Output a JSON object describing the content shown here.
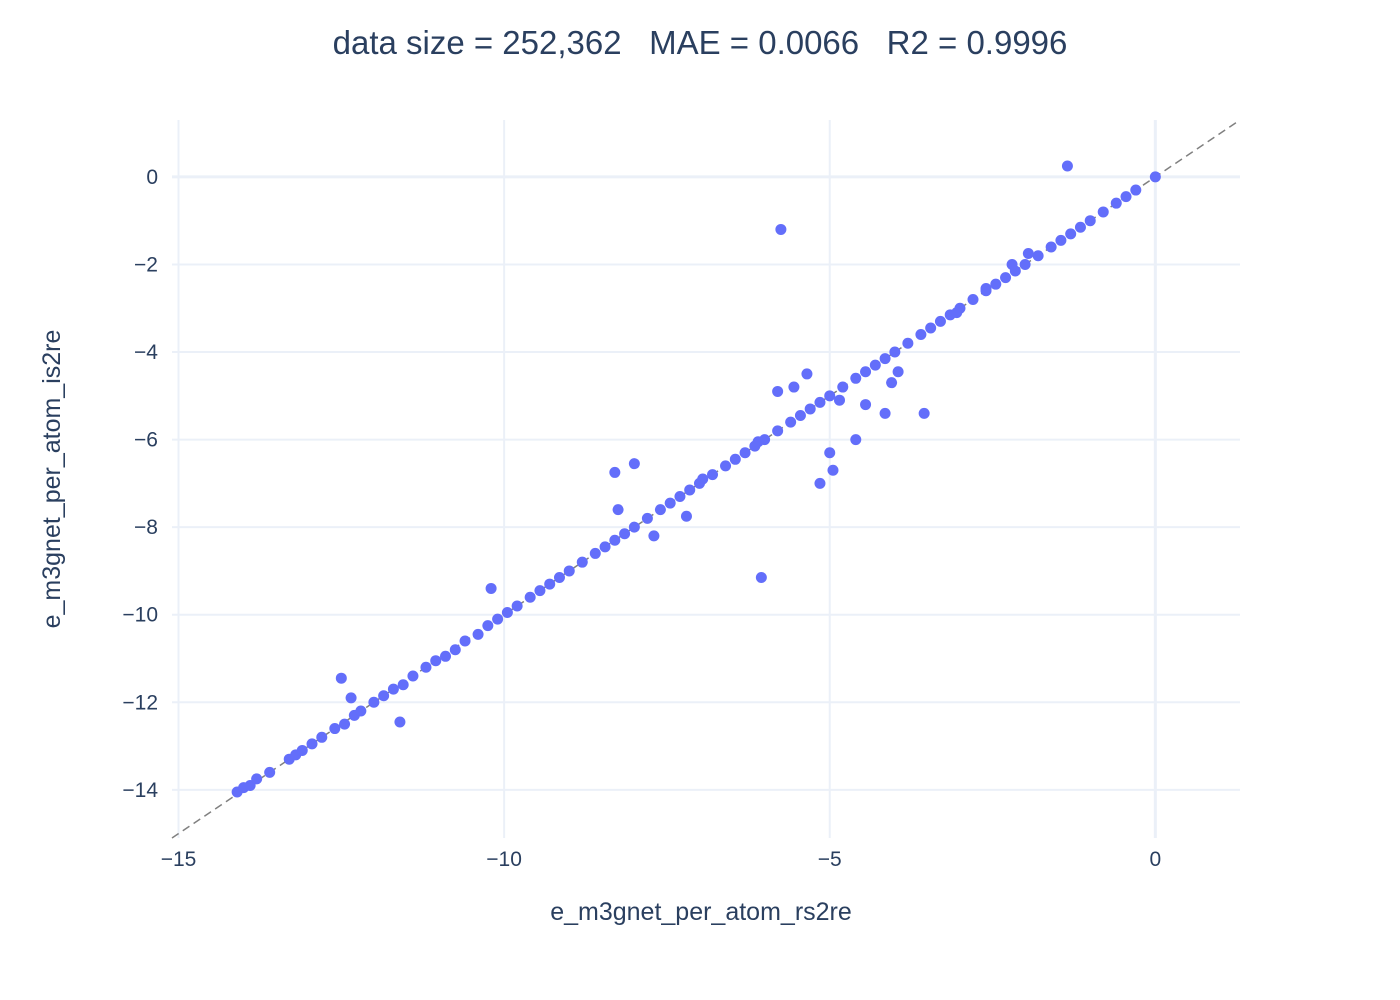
{
  "chart_data": {
    "type": "scatter",
    "title": "data size = 252,362   MAE = 0.0066   R2 = 0.9996",
    "xlabel": "e_m3gnet_per_atom_rs2re",
    "ylabel": "e_m3gnet_per_atom_is2re",
    "xlim": [
      -15.1,
      1.3
    ],
    "ylim": [
      -15.1,
      1.3
    ],
    "x_ticks": [
      -15,
      -10,
      -5,
      0
    ],
    "x_tick_labels": [
      "−15",
      "−10",
      "−5",
      "0"
    ],
    "y_ticks": [
      0,
      -2,
      -4,
      -6,
      -8,
      -10,
      -12,
      -14
    ],
    "y_tick_labels": [
      "0",
      "−2",
      "−4",
      "−6",
      "−8",
      "−10",
      "−12",
      "−14"
    ],
    "grid": true,
    "legend": "none",
    "reference_line": {
      "type": "y=x",
      "style": "dashed",
      "color": "#808080"
    },
    "marker_color": "#636efa",
    "series": [
      {
        "x": [
          -14.1,
          -14.0,
          -13.9,
          -13.8,
          -13.6,
          -13.3,
          -13.2,
          -13.1,
          -12.95,
          -12.8,
          -12.6,
          -12.45,
          -12.3,
          -12.2,
          -12.0,
          -11.85,
          -11.7,
          -11.55,
          -11.4,
          -11.2,
          -11.05,
          -10.9,
          -10.75,
          -10.6,
          -10.4,
          -10.25,
          -10.1,
          -9.95,
          -9.8,
          -9.6,
          -9.45,
          -9.3,
          -9.15,
          -9.0,
          -8.8,
          -8.6,
          -8.45,
          -8.3,
          -8.15,
          -8.0,
          -7.8,
          -7.6,
          -7.45,
          -7.3,
          -7.15,
          -7.0,
          -6.8,
          -6.6,
          -6.45,
          -6.3,
          -6.15,
          -6.0,
          -5.8,
          -5.6,
          -5.45,
          -5.3,
          -5.15,
          -5.0,
          -4.8,
          -4.6,
          -4.45,
          -4.3,
          -4.15,
          -4.0,
          -3.8,
          -3.6,
          -3.45,
          -3.3,
          -3.15,
          -3.0,
          -2.8,
          -2.6,
          -2.45,
          -2.3,
          -2.15,
          -2.0,
          -1.8,
          -1.6,
          -1.45,
          -1.3,
          -1.15,
          -1.0,
          -0.8,
          -0.6,
          -0.45,
          -0.3,
          0.0,
          -12.5,
          -12.35,
          -11.6,
          -10.2,
          -8.3,
          -8.25,
          -8.0,
          -7.7,
          -7.2,
          -6.95,
          -6.1,
          -5.8,
          -5.55,
          -5.35,
          -5.0,
          -4.95,
          -4.85,
          -4.6,
          -4.45,
          -4.15,
          -4.05,
          -3.95,
          -3.55,
          -3.05,
          -2.6,
          -2.2,
          -1.95,
          -1.35,
          -5.75,
          -6.05,
          -5.15
        ],
        "y": [
          -14.05,
          -13.95,
          -13.9,
          -13.75,
          -13.6,
          -13.3,
          -13.2,
          -13.1,
          -12.95,
          -12.8,
          -12.6,
          -12.5,
          -12.3,
          -12.2,
          -12.0,
          -11.85,
          -11.7,
          -11.6,
          -11.4,
          -11.2,
          -11.05,
          -10.95,
          -10.8,
          -10.6,
          -10.45,
          -10.25,
          -10.1,
          -9.95,
          -9.8,
          -9.6,
          -9.45,
          -9.3,
          -9.15,
          -9.0,
          -8.8,
          -8.6,
          -8.45,
          -8.3,
          -8.15,
          -8.0,
          -7.8,
          -7.6,
          -7.45,
          -7.3,
          -7.15,
          -7.0,
          -6.8,
          -6.6,
          -6.45,
          -6.3,
          -6.15,
          -6.0,
          -5.8,
          -5.6,
          -5.45,
          -5.3,
          -5.15,
          -5.0,
          -4.8,
          -4.6,
          -4.45,
          -4.3,
          -4.15,
          -4.0,
          -3.8,
          -3.6,
          -3.45,
          -3.3,
          -3.15,
          -3.0,
          -2.8,
          -2.6,
          -2.45,
          -2.3,
          -2.15,
          -2.0,
          -1.8,
          -1.6,
          -1.45,
          -1.3,
          -1.15,
          -1.0,
          -0.8,
          -0.6,
          -0.45,
          -0.3,
          0.0,
          -11.45,
          -11.9,
          -12.45,
          -9.4,
          -6.75,
          -7.6,
          -6.55,
          -8.2,
          -7.75,
          -6.9,
          -6.05,
          -4.9,
          -4.8,
          -4.5,
          -6.3,
          -6.7,
          -5.1,
          -6.0,
          -5.2,
          -5.4,
          -4.7,
          -4.45,
          -5.4,
          -3.1,
          -2.55,
          -2.0,
          -1.75,
          0.25,
          -1.2,
          -9.15,
          -7.0
        ]
      }
    ]
  }
}
